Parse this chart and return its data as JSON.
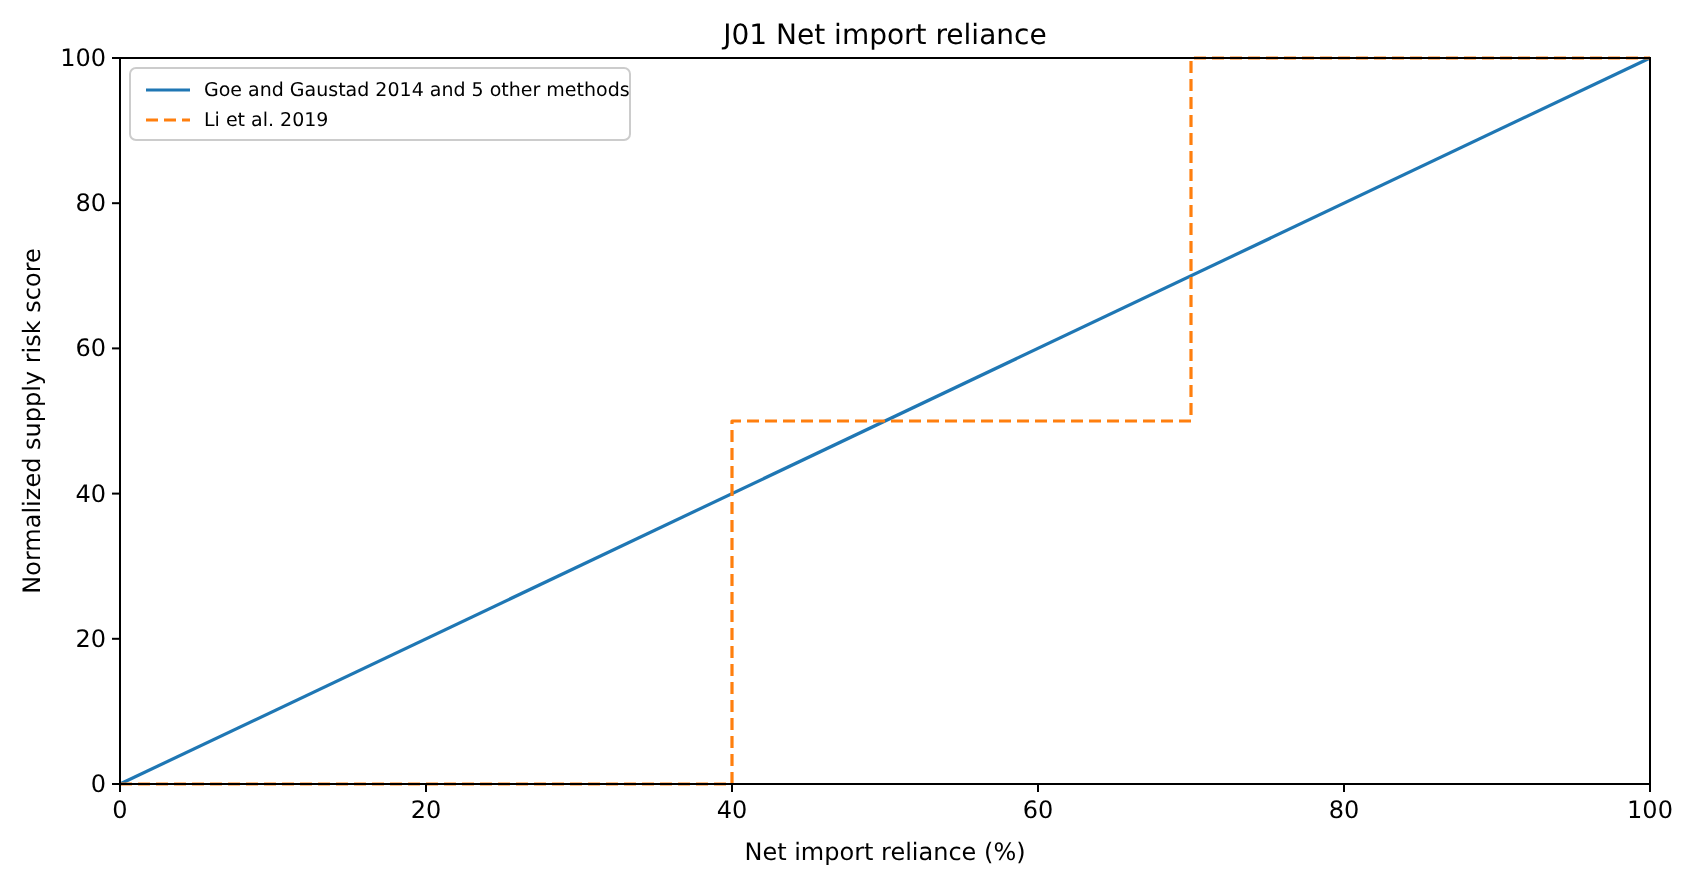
{
  "chart_data": {
    "type": "line",
    "title": "J01 Net import reliance",
    "xlabel": "Net import reliance (%)",
    "ylabel": "Normalized supply risk score",
    "xlim": [
      0,
      100
    ],
    "ylim": [
      0,
      100
    ],
    "xticks": [
      0,
      20,
      40,
      60,
      80,
      100
    ],
    "yticks": [
      0,
      20,
      40,
      60,
      80,
      100
    ],
    "grid": false,
    "legend": "top left",
    "series": [
      {
        "name": "Goe and Gaustad 2014 and 5 other methods",
        "color": "#1f77b4",
        "x": [
          0,
          100
        ],
        "values": [
          0,
          100
        ],
        "line_style": "solid"
      },
      {
        "name": "Li et al. 2019",
        "color": "#ff7f0e",
        "x": [
          0,
          40,
          40,
          70,
          70,
          100
        ],
        "values": [
          0,
          0,
          50,
          50,
          100,
          100
        ],
        "line_style": "dashed"
      }
    ]
  }
}
